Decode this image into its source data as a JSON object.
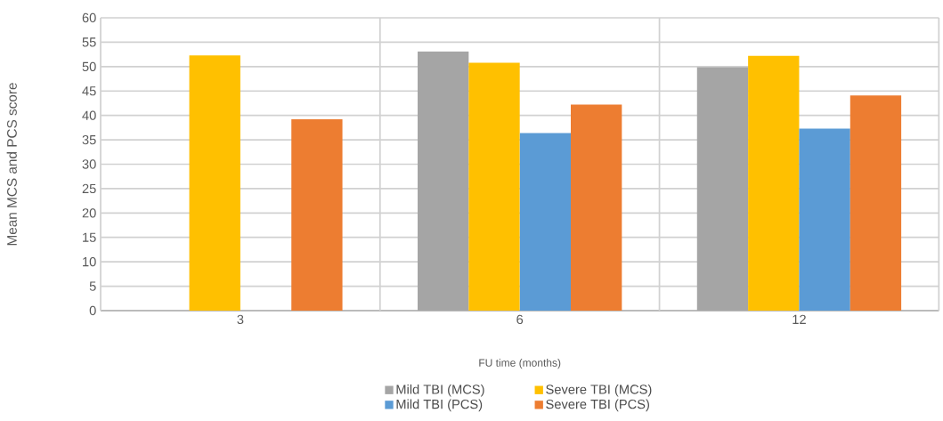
{
  "chart_data": {
    "type": "bar",
    "xlabel": "FU time (months)",
    "ylabel": "Mean MCS and  PCS score",
    "categories": [
      "3",
      "6",
      "12"
    ],
    "series": [
      {
        "name": "Mild TBI (MCS)",
        "color": "#a5a5a5",
        "values": [
          null,
          53.1,
          49.9
        ]
      },
      {
        "name": "Severe TBI (MCS)",
        "color": "#ffc000",
        "values": [
          52.3,
          50.8,
          52.2
        ]
      },
      {
        "name": "Mild TBI (PCS)",
        "color": "#5b9bd5",
        "values": [
          null,
          36.4,
          37.3
        ]
      },
      {
        "name": "Severe TBI (PCS)",
        "color": "#ed7d31",
        "values": [
          39.2,
          42.2,
          44.1
        ]
      }
    ],
    "ylim": [
      0,
      60
    ],
    "yticks": [
      0,
      5,
      10,
      15,
      20,
      25,
      30,
      35,
      40,
      45,
      50,
      55,
      60
    ],
    "grid": true,
    "legend": "bottom"
  }
}
